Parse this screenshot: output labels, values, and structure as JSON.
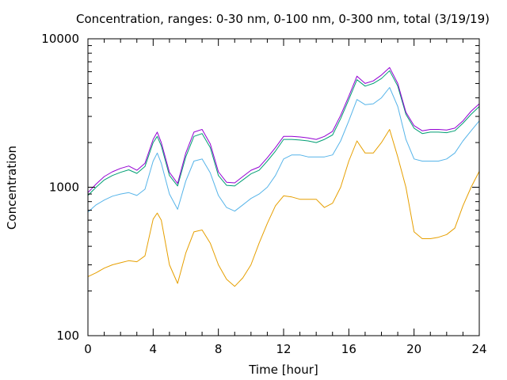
{
  "chart_data": {
    "type": "line",
    "title": "Concentration, ranges: 0-30 nm, 0-100 nm, 0-300 nm, total (3/19/19)",
    "xlabel": "Time [hour]",
    "ylabel": "Concentration",
    "xlim": [
      0,
      24
    ],
    "ylim": [
      100,
      10000
    ],
    "yscale": "log",
    "grid": false,
    "legend": "none",
    "x_ticks": [
      0,
      4,
      8,
      12,
      16,
      20,
      24
    ],
    "y_ticks": [
      100,
      1000,
      10000
    ],
    "x_tick_labels": [
      "0",
      "4",
      "8",
      "12",
      "16",
      "20",
      "24"
    ],
    "y_tick_labels": [
      "100",
      "1000",
      "10000"
    ],
    "series": [
      {
        "color": "#e69f00",
        "x": [
          0,
          0.5,
          1,
          1.5,
          2,
          2.5,
          3,
          3.5,
          4,
          4.25,
          4.5,
          5,
          5.5,
          6,
          6.5,
          7,
          7.5,
          8,
          8.5,
          9,
          9.5,
          10,
          10.5,
          11,
          11.5,
          12,
          12.5,
          13,
          13.5,
          14,
          14.5,
          15,
          15.5,
          16,
          16.5,
          17,
          17.5,
          18,
          18.5,
          19,
          19.5,
          20,
          20.5,
          21,
          21.5,
          22,
          22.5,
          23,
          23.5,
          24
        ],
        "y": [
          250,
          265,
          285,
          300,
          310,
          320,
          315,
          345,
          610,
          670,
          600,
          300,
          225,
          360,
          500,
          515,
          420,
          300,
          240,
          215,
          245,
          300,
          420,
          570,
          750,
          875,
          860,
          830,
          830,
          830,
          730,
          780,
          1000,
          1500,
          2050,
          1700,
          1700,
          2000,
          2450,
          1600,
          1000,
          500,
          450,
          450,
          460,
          480,
          530,
          750,
          1000,
          1280
        ]
      },
      {
        "color": "#56b4e9",
        "x": [
          0,
          0.5,
          1,
          1.5,
          2,
          2.5,
          3,
          3.5,
          4,
          4.25,
          4.5,
          5,
          5.5,
          6,
          6.5,
          7,
          7.5,
          8,
          8.5,
          9,
          9.5,
          10,
          10.5,
          11,
          11.5,
          12,
          12.5,
          13,
          13.5,
          14,
          14.5,
          15,
          15.5,
          16,
          16.5,
          17,
          17.5,
          18,
          18.5,
          19,
          19.5,
          20,
          20.5,
          21,
          21.5,
          22,
          22.5,
          23,
          23.5,
          24
        ],
        "y": [
          680,
          760,
          820,
          870,
          900,
          920,
          880,
          970,
          1500,
          1700,
          1450,
          900,
          710,
          1100,
          1500,
          1550,
          1250,
          880,
          730,
          690,
          760,
          840,
          900,
          1000,
          1200,
          1550,
          1650,
          1650,
          1600,
          1600,
          1600,
          1650,
          2050,
          2800,
          3900,
          3600,
          3650,
          4000,
          4700,
          3500,
          2100,
          1550,
          1500,
          1500,
          1500,
          1550,
          1700,
          2050,
          2400,
          2800
        ]
      },
      {
        "color": "#009e73",
        "x": [
          0,
          0.5,
          1,
          1.5,
          2,
          2.5,
          3,
          3.5,
          4,
          4.25,
          4.5,
          5,
          5.5,
          6,
          6.5,
          7,
          7.5,
          8,
          8.5,
          9,
          9.5,
          10,
          10.5,
          11,
          11.5,
          12,
          12.5,
          13,
          13.5,
          14,
          14.5,
          15,
          15.5,
          16,
          16.5,
          17,
          17.5,
          18,
          18.5,
          19,
          19.5,
          20,
          20.5,
          21,
          21.5,
          22,
          22.5,
          23,
          23.5,
          24
        ],
        "y": [
          880,
          1000,
          1120,
          1200,
          1260,
          1310,
          1240,
          1380,
          2000,
          2200,
          1900,
          1200,
          1020,
          1600,
          2200,
          2300,
          1850,
          1200,
          1030,
          1020,
          1120,
          1230,
          1300,
          1500,
          1750,
          2100,
          2100,
          2080,
          2050,
          2000,
          2100,
          2250,
          2900,
          3900,
          5300,
          4800,
          5000,
          5400,
          6100,
          4800,
          3100,
          2500,
          2300,
          2350,
          2350,
          2330,
          2400,
          2700,
          3100,
          3500
        ]
      },
      {
        "color": "#9400d3",
        "x": [
          0,
          0.5,
          1,
          1.5,
          2,
          2.5,
          3,
          3.5,
          4,
          4.25,
          4.5,
          5,
          5.5,
          6,
          6.5,
          7,
          7.5,
          8,
          8.5,
          9,
          9.5,
          10,
          10.5,
          11,
          11.5,
          12,
          12.5,
          13,
          13.5,
          14,
          14.5,
          15,
          15.5,
          16,
          16.5,
          17,
          17.5,
          18,
          18.5,
          19,
          19.5,
          20,
          20.5,
          21,
          21.5,
          22,
          22.5,
          23,
          23.5,
          24
        ],
        "y": [
          920,
          1050,
          1180,
          1270,
          1340,
          1390,
          1300,
          1450,
          2100,
          2350,
          2000,
          1260,
          1060,
          1700,
          2350,
          2450,
          1960,
          1270,
          1080,
          1070,
          1180,
          1300,
          1370,
          1580,
          1850,
          2200,
          2200,
          2180,
          2150,
          2100,
          2200,
          2380,
          3050,
          4100,
          5600,
          5000,
          5200,
          5700,
          6400,
          5000,
          3200,
          2600,
          2400,
          2450,
          2450,
          2430,
          2500,
          2800,
          3250,
          3650
        ]
      }
    ]
  }
}
